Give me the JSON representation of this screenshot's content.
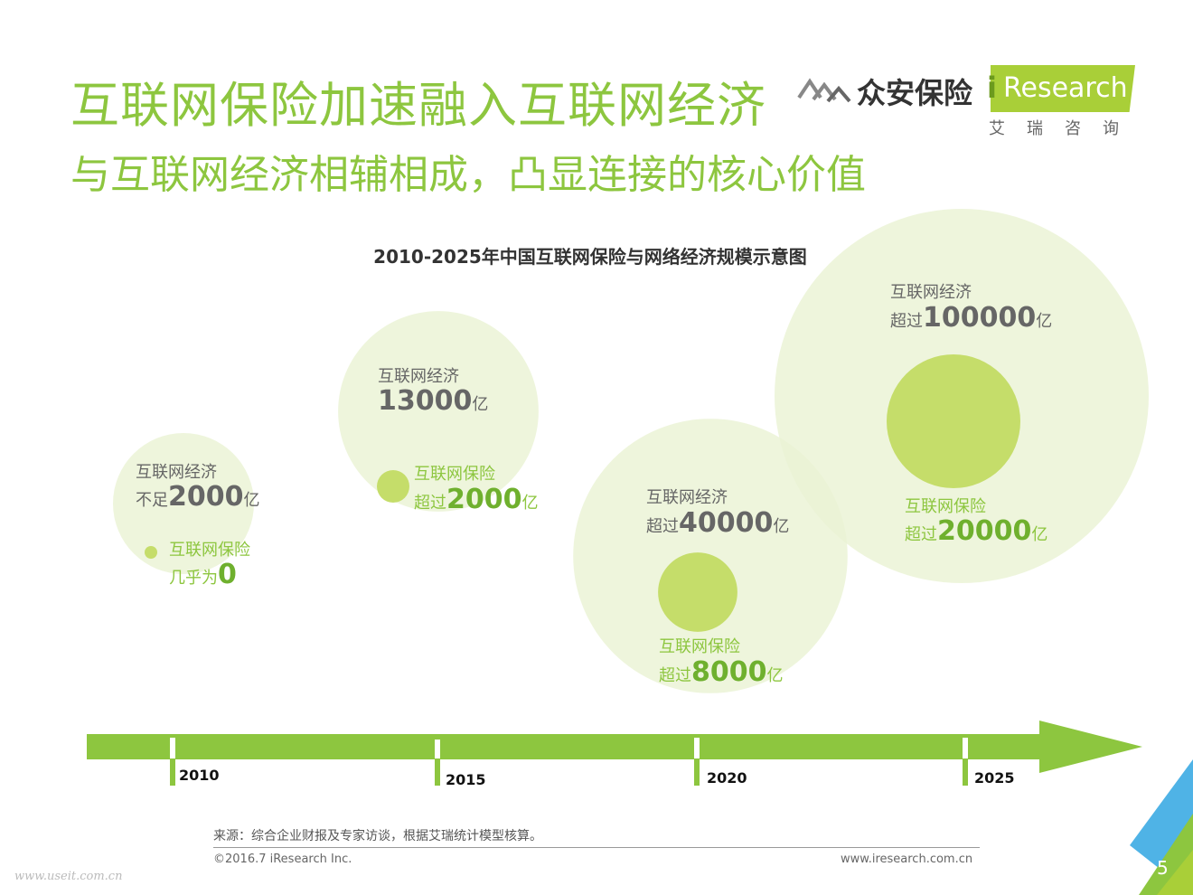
{
  "header": {
    "title": "互联网保险加速融入互联网经济",
    "subtitle": "与互联网经济相辅相成，凸显连接的核心价值"
  },
  "logos": {
    "zhongan": "众安保险",
    "iresearch_i": "i",
    "iresearch": "Research",
    "iresearch_cn": "艾瑞咨询"
  },
  "colors": {
    "title_green": "#8DC63F",
    "bubble_outer": "#EAF3D4",
    "bubble_inner": "#C5DD6A",
    "arrow": "#8DC63F",
    "value_green": "#6FB02E"
  },
  "chart_data": {
    "type": "bubble-timeline",
    "title": "2010-2025年中国互联网保险与网络经济规模示意图",
    "unit": "亿",
    "categories": [
      "2010",
      "2015",
      "2020",
      "2025"
    ],
    "series": [
      {
        "name": "互联网经济",
        "values": [
          2000,
          13000,
          40000,
          100000
        ]
      },
      {
        "name": "互联网保险",
        "values": [
          0,
          2000,
          8000,
          20000
        ]
      }
    ],
    "annotations": [
      {
        "year": "2010",
        "economy": {
          "label": "互联网经济",
          "prefix": "不足",
          "value": "2000",
          "unit": "亿"
        },
        "insurance": {
          "label": "互联网保险",
          "prefix": "几乎为",
          "value": "0",
          "unit": ""
        }
      },
      {
        "year": "2015",
        "economy": {
          "label": "互联网经济",
          "prefix": "",
          "value": "13000",
          "unit": "亿"
        },
        "insurance": {
          "label": "互联网保险",
          "prefix": "超过",
          "value": "2000",
          "unit": "亿"
        }
      },
      {
        "year": "2020",
        "economy": {
          "label": "互联网经济",
          "prefix": "超过",
          "value": "40000",
          "unit": "亿"
        },
        "insurance": {
          "label": "互联网保险",
          "prefix": "超过",
          "value": "8000",
          "unit": "亿"
        }
      },
      {
        "year": "2025",
        "economy": {
          "label": "互联网经济",
          "prefix": "超过",
          "value": "100000",
          "unit": "亿"
        },
        "insurance": {
          "label": "互联网保险",
          "prefix": "超过",
          "value": "20000",
          "unit": "亿"
        }
      }
    ]
  },
  "footer": {
    "source": "来源：综合企业财报及专家访谈，根据艾瑞统计模型核算。",
    "copyright": "©2016.7 iResearch Inc.",
    "website": "www.iresearch.com.cn",
    "page": "5",
    "watermark": "www.useit.com.cn"
  }
}
